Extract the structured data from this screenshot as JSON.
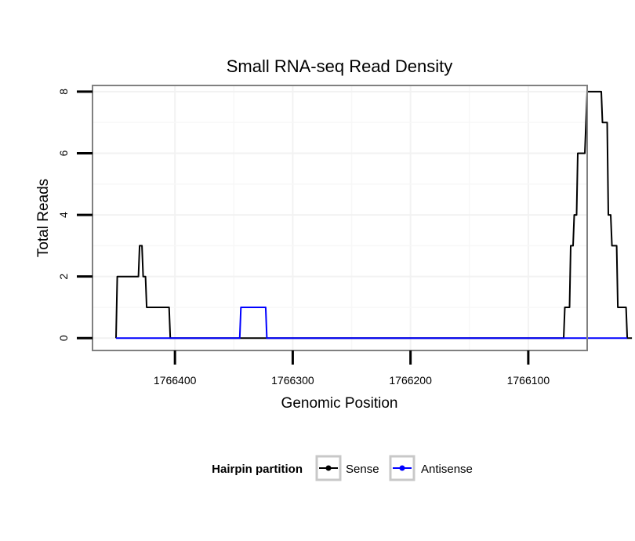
{
  "chart_data": {
    "type": "line",
    "title": "Small RNA-seq Read Density",
    "xlabel": "Genomic Position",
    "ylabel": "Total Reads",
    "x_reversed": true,
    "xlim": [
      1766470,
      1766050
    ],
    "ylim": [
      -0.4,
      8.2
    ],
    "xticks": [
      1766400,
      1766300,
      1766200,
      1766100
    ],
    "xtick_labels": [
      "1766400",
      "1766300",
      "1766200",
      "1766100"
    ],
    "yticks": [
      0,
      2,
      4,
      6,
      8
    ],
    "ytick_labels": [
      "0",
      "2",
      "4",
      "6",
      "8"
    ],
    "grid": true,
    "legend": {
      "title": "Hairpin partition",
      "position": "bottom",
      "entries": [
        "Sense",
        "Antisense"
      ]
    },
    "series": [
      {
        "name": "Sense",
        "color": "#000000",
        "x": [
          1766450,
          1766449,
          1766431,
          1766430,
          1766428,
          1766427,
          1766425,
          1766424,
          1766405,
          1766404,
          1766070,
          1766069,
          1766065,
          1766064,
          1766062,
          1766061,
          1766059,
          1766058,
          1766052,
          1766051,
          1766051,
          1766050,
          1766050,
          1766049,
          1766038,
          1766037,
          1766033,
          1766032,
          1766030,
          1766029,
          1766025,
          1766024,
          1766017,
          1766016,
          1766012
        ],
        "values": [
          0,
          2,
          2,
          3,
          3,
          2,
          2,
          1,
          1,
          0,
          0,
          1,
          1,
          3,
          3,
          4,
          4,
          6,
          6,
          7,
          7,
          8,
          8,
          8,
          8,
          7,
          7,
          4,
          4,
          3,
          3,
          1,
          1,
          0,
          0
        ]
      },
      {
        "name": "Antisense",
        "color": "#0000ff",
        "x": [
          1766450,
          1766345,
          1766344,
          1766323,
          1766322,
          1766067,
          1766016
        ],
        "values": [
          0,
          0,
          1,
          1,
          0,
          0,
          0
        ]
      }
    ]
  }
}
